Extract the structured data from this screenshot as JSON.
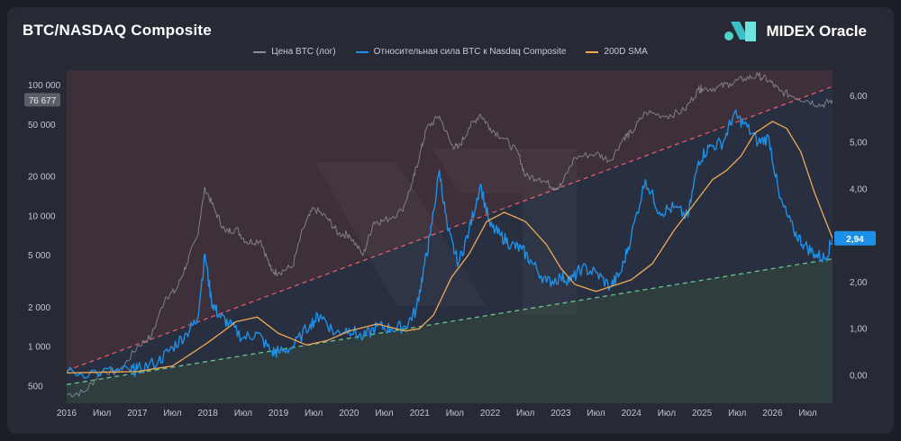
{
  "header": {
    "title": "BTC/NASDAQ Composite",
    "brand": "MIDEX Oracle"
  },
  "legend": [
    {
      "label": "Цена BTC (лог)",
      "color": "#8a8d95"
    },
    {
      "label": "Относительная сила BTC к Nasdaq Composite",
      "color": "#1e8fe6"
    },
    {
      "label": "200D SMA",
      "color": "#f0a855"
    }
  ],
  "chart_data": {
    "type": "line",
    "x_ticks": [
      "2016",
      "Июл",
      "2017",
      "Июл",
      "2018",
      "Июл",
      "2019",
      "Июл",
      "2020",
      "Июл",
      "2021",
      "Июл",
      "2022",
      "Июл",
      "2023",
      "Июл",
      "2024",
      "Июл",
      "2025",
      "Июл",
      "2026",
      "Июл"
    ],
    "x_range": [
      2016.0,
      2026.85
    ],
    "left_axis": {
      "label": "",
      "scale": "log",
      "ticks": [
        "100 000",
        "50 000",
        "20 000",
        "10 000",
        "5 000",
        "2 000",
        "1 000",
        "500"
      ],
      "tick_values": [
        100000,
        50000,
        20000,
        10000,
        5000,
        2000,
        1000,
        500
      ],
      "range": [
        370,
        130000
      ],
      "current_badge": "76 677"
    },
    "right_axis": {
      "label": "",
      "scale": "linear",
      "ticks": [
        "6,00",
        "5,00",
        "4,00",
        "3,00",
        "2,00",
        "1,00",
        "0,00"
      ],
      "tick_values": [
        6,
        5,
        4,
        3,
        2,
        1,
        0
      ],
      "range": [
        -0.6,
        6.55
      ],
      "current_badge": "2,94"
    },
    "series": [
      {
        "name": "Цена BTC (лог)",
        "axis": "left",
        "color": "#8a8d95",
        "x": [
          2016.0,
          2016.25,
          2016.5,
          2016.75,
          2017.0,
          2017.2,
          2017.4,
          2017.55,
          2017.7,
          2017.85,
          2017.96,
          2018.1,
          2018.25,
          2018.4,
          2018.55,
          2018.75,
          2018.9,
          2019.0,
          2019.2,
          2019.35,
          2019.5,
          2019.7,
          2019.85,
          2020.0,
          2020.2,
          2020.35,
          2020.5,
          2020.75,
          2020.9,
          2021.0,
          2021.1,
          2021.28,
          2021.45,
          2021.55,
          2021.7,
          2021.86,
          2022.0,
          2022.2,
          2022.4,
          2022.5,
          2022.7,
          2022.9,
          2023.0,
          2023.2,
          2023.5,
          2023.7,
          2023.9,
          2024.0,
          2024.2,
          2024.5,
          2024.75,
          2024.95,
          2025.0,
          2025.2,
          2025.4,
          2025.6,
          2025.8,
          2025.95,
          2026.1,
          2026.3,
          2026.5,
          2026.7,
          2026.85
        ],
        "values": [
          430,
          450,
          650,
          640,
          1000,
          1200,
          2400,
          2700,
          4300,
          7000,
          16500,
          11000,
          7500,
          8000,
          6300,
          6500,
          3800,
          3700,
          4100,
          8000,
          11500,
          9500,
          7300,
          7200,
          5000,
          9000,
          9200,
          11000,
          18000,
          29000,
          47000,
          58000,
          35000,
          33000,
          47000,
          60000,
          47000,
          39000,
          30000,
          20000,
          19500,
          16500,
          17000,
          28000,
          30000,
          26500,
          40000,
          43000,
          62000,
          58000,
          64000,
          93000,
          94000,
          95000,
          103000,
          112000,
          118000,
          108000,
          90000,
          82000,
          76000,
          70000,
          76677
        ]
      },
      {
        "name": "Относительная сила BTC к Nasdaq Composite",
        "axis": "right",
        "color": "#1e8fe6",
        "x": [
          2016.0,
          2016.5,
          2016.9,
          2017.0,
          2017.3,
          2017.5,
          2017.7,
          2017.85,
          2017.96,
          2018.05,
          2018.15,
          2018.3,
          2018.5,
          2018.7,
          2018.9,
          2019.0,
          2019.2,
          2019.45,
          2019.6,
          2019.8,
          2020.0,
          2020.2,
          2020.4,
          2020.6,
          2020.8,
          2020.95,
          2021.05,
          2021.15,
          2021.28,
          2021.4,
          2021.55,
          2021.7,
          2021.86,
          2022.0,
          2022.15,
          2022.3,
          2022.45,
          2022.6,
          2022.8,
          2023.0,
          2023.15,
          2023.3,
          2023.5,
          2023.7,
          2023.85,
          2024.0,
          2024.2,
          2024.4,
          2024.6,
          2024.8,
          2024.95,
          2025.1,
          2025.3,
          2025.45,
          2025.6,
          2025.8,
          2025.95,
          2026.1,
          2026.3,
          2026.45,
          2026.6,
          2026.75,
          2026.85
        ],
        "values": [
          0.05,
          0.07,
          0.1,
          0.12,
          0.3,
          0.6,
          0.9,
          1.2,
          2.6,
          1.6,
          1.3,
          1.1,
          0.8,
          0.9,
          0.5,
          0.5,
          0.6,
          1.1,
          1.3,
          0.9,
          1.0,
          0.8,
          1.05,
          1.0,
          1.05,
          1.4,
          2.2,
          3.0,
          4.4,
          3.1,
          2.4,
          3.1,
          4.1,
          3.2,
          3.0,
          2.8,
          2.7,
          2.4,
          2.0,
          2.1,
          2.05,
          2.3,
          2.2,
          1.9,
          2.2,
          3.0,
          4.2,
          3.5,
          3.6,
          3.4,
          4.6,
          4.9,
          5.0,
          5.6,
          5.4,
          5.0,
          5.1,
          3.8,
          3.1,
          2.8,
          2.6,
          2.5,
          2.94
        ]
      },
      {
        "name": "200D SMA",
        "axis": "right",
        "color": "#f0a855",
        "x": [
          2016.0,
          2017.0,
          2017.5,
          2018.0,
          2018.4,
          2018.7,
          2019.0,
          2019.4,
          2019.7,
          2020.0,
          2020.4,
          2020.8,
          2021.0,
          2021.2,
          2021.45,
          2021.7,
          2021.95,
          2022.2,
          2022.5,
          2022.8,
          2023.0,
          2023.2,
          2023.5,
          2023.8,
          2024.0,
          2024.3,
          2024.6,
          2024.9,
          2025.15,
          2025.35,
          2025.55,
          2025.75,
          2026.0,
          2026.2,
          2026.4,
          2026.6,
          2026.85
        ],
        "values": [
          0.05,
          0.08,
          0.2,
          0.7,
          1.15,
          1.25,
          0.9,
          0.65,
          0.75,
          0.95,
          1.1,
          0.95,
          1.0,
          1.3,
          2.1,
          2.6,
          3.3,
          3.5,
          3.3,
          2.8,
          2.3,
          1.95,
          1.8,
          1.95,
          2.05,
          2.4,
          3.1,
          3.7,
          4.2,
          4.4,
          4.7,
          5.2,
          5.45,
          5.3,
          4.8,
          3.9,
          2.94
        ]
      }
    ],
    "zones": [
      {
        "name": "upper-channel",
        "color": "#e05a6a",
        "from": [
          2016.0,
          0.1
        ],
        "to": [
          2026.85,
          6.2
        ]
      },
      {
        "name": "lower-channel",
        "color": "#6ac48a",
        "from": [
          2016.0,
          -0.2
        ],
        "to": [
          2026.85,
          2.5
        ]
      }
    ],
    "grid": false,
    "legend_position": "top-center"
  }
}
